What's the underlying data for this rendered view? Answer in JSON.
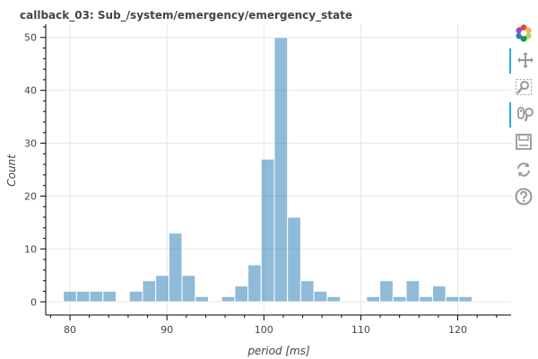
{
  "chart_data": {
    "type": "bar",
    "title": "callback_03: Sub_/system/emergency/emergency_state",
    "xlabel": "period [ms]",
    "ylabel": "Count",
    "xlim": [
      77.5,
      125.5
    ],
    "ylim": [
      -2.5,
      52.5
    ],
    "xticks": [
      80,
      90,
      100,
      110,
      120
    ],
    "yticks": [
      0,
      10,
      20,
      30,
      40,
      50
    ],
    "grid": true,
    "legend": "none",
    "bin_width": 1.36,
    "bins": [
      {
        "x": 80.0,
        "count": 2
      },
      {
        "x": 81.36,
        "count": 2
      },
      {
        "x": 82.72,
        "count": 2
      },
      {
        "x": 84.08,
        "count": 2
      },
      {
        "x": 86.8,
        "count": 2
      },
      {
        "x": 88.16,
        "count": 4
      },
      {
        "x": 89.52,
        "count": 5
      },
      {
        "x": 90.88,
        "count": 13
      },
      {
        "x": 92.24,
        "count": 5
      },
      {
        "x": 93.6,
        "count": 1
      },
      {
        "x": 96.32,
        "count": 1
      },
      {
        "x": 97.68,
        "count": 3
      },
      {
        "x": 99.04,
        "count": 7
      },
      {
        "x": 100.4,
        "count": 27
      },
      {
        "x": 101.76,
        "count": 50
      },
      {
        "x": 103.12,
        "count": 16
      },
      {
        "x": 104.48,
        "count": 4
      },
      {
        "x": 105.84,
        "count": 2
      },
      {
        "x": 107.2,
        "count": 1
      },
      {
        "x": 111.28,
        "count": 1
      },
      {
        "x": 112.64,
        "count": 4
      },
      {
        "x": 114.0,
        "count": 1
      },
      {
        "x": 115.36,
        "count": 4
      },
      {
        "x": 116.72,
        "count": 1
      },
      {
        "x": 118.08,
        "count": 3
      },
      {
        "x": 119.44,
        "count": 1
      },
      {
        "x": 120.8,
        "count": 1
      }
    ],
    "bar_color": "#1f77b4"
  },
  "toolbar": {
    "tools": [
      {
        "name": "bokeh-logo-icon",
        "active": false
      },
      {
        "name": "pan-tool-icon",
        "active": true
      },
      {
        "name": "box-zoom-tool-icon",
        "active": false
      },
      {
        "name": "wheel-zoom-tool-icon",
        "active": true
      },
      {
        "name": "save-tool-icon",
        "active": false
      },
      {
        "name": "reset-tool-icon",
        "active": false
      },
      {
        "name": "help-tool-icon",
        "active": false
      }
    ]
  }
}
